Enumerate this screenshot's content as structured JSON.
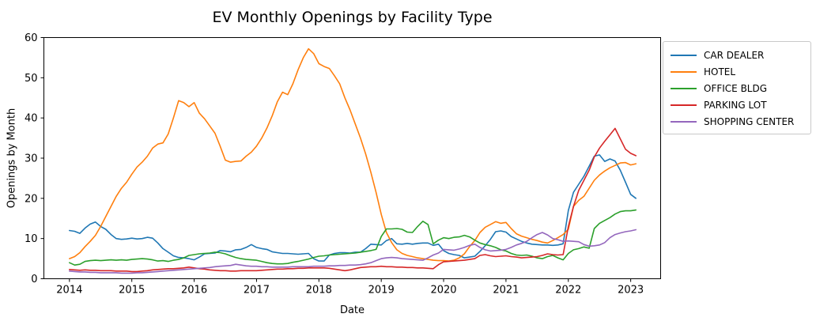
{
  "title": "EV Monthly Openings by Facility Type",
  "chart_data": {
    "type": "line",
    "title": "EV Monthly Openings by Facility Type",
    "xlabel": "Date",
    "ylabel": "Openings by Month",
    "xlim": [
      2013.59,
      2023.48
    ],
    "ylim": [
      0,
      60
    ],
    "xticks": [
      2014,
      2015,
      2016,
      2017,
      2018,
      2019,
      2020,
      2021,
      2022,
      2023
    ],
    "yticks": [
      0,
      10,
      20,
      30,
      40,
      50,
      60
    ],
    "grid": false,
    "legend_position": "outside upper right",
    "x_start": 2014.0,
    "x_step": 0.0833333,
    "series": [
      {
        "name": "CAR DEALER",
        "color": "#1f77b4",
        "values": [
          12.0,
          11.8,
          11.3,
          12.6,
          13.6,
          14.1,
          13.0,
          12.3,
          11.0,
          10.0,
          9.8,
          9.9,
          10.1,
          9.9,
          10.0,
          10.3,
          10.1,
          8.9,
          7.5,
          6.6,
          5.7,
          5.3,
          5.2,
          5.0,
          4.7,
          5.4,
          6.2,
          6.3,
          6.4,
          7.0,
          6.9,
          6.7,
          7.2,
          7.3,
          7.8,
          8.5,
          7.8,
          7.5,
          7.3,
          6.7,
          6.5,
          6.3,
          6.3,
          6.2,
          6.1,
          6.2,
          6.3,
          5.0,
          4.4,
          4.4,
          5.9,
          6.3,
          6.5,
          6.5,
          6.4,
          6.6,
          6.6,
          7.5,
          8.6,
          8.5,
          8.4,
          9.5,
          10.0,
          8.7,
          8.6,
          8.8,
          8.6,
          8.8,
          8.9,
          8.9,
          8.3,
          8.6,
          7.0,
          6.3,
          6.0,
          5.8,
          5.2,
          5.4,
          5.6,
          6.8,
          8.2,
          9.8,
          11.7,
          11.9,
          11.6,
          10.5,
          9.9,
          9.3,
          8.9,
          8.6,
          8.5,
          8.4,
          8.4,
          8.3,
          8.4,
          8.7,
          17.0,
          21.5,
          23.5,
          25.5,
          28.0,
          30.5,
          30.8,
          29.2,
          29.8,
          29.3,
          27.0,
          24.0,
          21.0,
          20.0
        ]
      },
      {
        "name": "HOTEL",
        "color": "#ff7f0e",
        "values": [
          5.0,
          5.5,
          6.5,
          8.0,
          9.3,
          10.8,
          13.0,
          15.5,
          18.0,
          20.5,
          22.5,
          24.0,
          26.0,
          27.8,
          29.0,
          30.5,
          32.5,
          33.5,
          33.8,
          36.0,
          40.0,
          44.3,
          43.8,
          42.8,
          43.8,
          41.2,
          39.8,
          38.0,
          36.2,
          33.0,
          29.5,
          29.0,
          29.2,
          29.3,
          30.5,
          31.5,
          33.0,
          35.0,
          37.5,
          40.5,
          44.0,
          46.4,
          45.8,
          48.5,
          52.0,
          55.0,
          57.2,
          56.0,
          53.5,
          52.8,
          52.3,
          50.5,
          48.5,
          45.0,
          42.0,
          38.5,
          35.0,
          31.0,
          26.5,
          21.5,
          16.0,
          11.5,
          9.0,
          7.2,
          6.3,
          5.8,
          5.5,
          5.2,
          5.0,
          4.8,
          4.6,
          4.5,
          4.5,
          4.4,
          4.6,
          5.2,
          6.2,
          8.0,
          9.5,
          11.5,
          12.8,
          13.5,
          14.2,
          13.8,
          14.0,
          12.5,
          11.2,
          10.6,
          10.2,
          9.8,
          9.5,
          9.1,
          8.9,
          9.5,
          10.2,
          11.0,
          12.3,
          18.0,
          19.5,
          20.5,
          22.5,
          24.5,
          25.8,
          26.8,
          27.6,
          28.2,
          28.8,
          28.9,
          28.3,
          28.6
        ]
      },
      {
        "name": "OFFICE BLDG",
        "color": "#2ca02c",
        "values": [
          4.0,
          3.4,
          3.6,
          4.3,
          4.5,
          4.6,
          4.5,
          4.6,
          4.7,
          4.6,
          4.7,
          4.6,
          4.8,
          4.9,
          5.0,
          4.9,
          4.7,
          4.4,
          4.5,
          4.3,
          4.6,
          4.8,
          5.2,
          5.8,
          6.0,
          6.2,
          6.3,
          6.4,
          6.6,
          6.5,
          6.2,
          5.7,
          5.3,
          5.0,
          4.8,
          4.7,
          4.6,
          4.3,
          4.0,
          3.8,
          3.7,
          3.7,
          3.8,
          4.1,
          4.3,
          4.6,
          4.9,
          5.3,
          5.6,
          5.7,
          5.9,
          6.0,
          6.1,
          6.2,
          6.3,
          6.4,
          6.6,
          6.8,
          7.0,
          7.3,
          10.5,
          12.4,
          12.4,
          12.5,
          12.3,
          11.6,
          11.5,
          13.0,
          14.3,
          13.5,
          8.7,
          9.6,
          10.2,
          10.0,
          10.3,
          10.4,
          10.8,
          10.4,
          9.6,
          8.9,
          8.5,
          8.2,
          7.8,
          7.2,
          6.9,
          6.3,
          5.9,
          5.8,
          5.9,
          5.6,
          5.2,
          5.0,
          5.5,
          5.8,
          5.2,
          4.7,
          6.3,
          7.2,
          7.5,
          7.9,
          7.6,
          12.5,
          13.8,
          14.5,
          15.2,
          16.1,
          16.7,
          16.9,
          16.9,
          17.1
        ]
      },
      {
        "name": "PARKING LOT",
        "color": "#d62728",
        "values": [
          2.3,
          2.2,
          2.1,
          2.2,
          2.1,
          2.1,
          2.0,
          2.0,
          2.0,
          1.9,
          1.9,
          1.9,
          1.8,
          1.8,
          1.9,
          2.0,
          2.2,
          2.3,
          2.4,
          2.5,
          2.5,
          2.6,
          2.7,
          2.9,
          2.7,
          2.5,
          2.4,
          2.2,
          2.1,
          2.0,
          2.0,
          1.9,
          1.9,
          2.0,
          2.0,
          2.0,
          2.0,
          2.1,
          2.2,
          2.3,
          2.4,
          2.4,
          2.5,
          2.5,
          2.6,
          2.6,
          2.7,
          2.7,
          2.7,
          2.7,
          2.6,
          2.4,
          2.2,
          2.0,
          2.2,
          2.5,
          2.8,
          2.9,
          3.0,
          3.0,
          3.1,
          3.0,
          3.0,
          2.9,
          2.9,
          2.8,
          2.8,
          2.7,
          2.7,
          2.6,
          2.5,
          3.5,
          4.2,
          4.3,
          4.4,
          4.5,
          4.6,
          4.8,
          5.0,
          5.8,
          6.0,
          5.7,
          5.5,
          5.6,
          5.7,
          5.5,
          5.4,
          5.2,
          5.3,
          5.4,
          5.5,
          5.8,
          6.2,
          6.0,
          5.9,
          6.0,
          13.0,
          18.0,
          22.0,
          24.5,
          27.0,
          30.3,
          32.5,
          34.2,
          35.8,
          37.4,
          34.8,
          32.2,
          31.2,
          30.6
        ]
      },
      {
        "name": "SHOPPING CENTER",
        "color": "#9467bd",
        "values": [
          1.9,
          1.8,
          1.7,
          1.7,
          1.6,
          1.6,
          1.5,
          1.5,
          1.5,
          1.5,
          1.4,
          1.4,
          1.4,
          1.5,
          1.5,
          1.6,
          1.7,
          1.8,
          1.9,
          2.0,
          2.1,
          2.2,
          2.3,
          2.4,
          2.5,
          2.6,
          2.7,
          2.8,
          3.0,
          3.1,
          3.2,
          3.3,
          3.6,
          3.4,
          3.2,
          3.1,
          3.1,
          3.0,
          3.0,
          2.9,
          2.9,
          2.9,
          2.9,
          3.0,
          3.0,
          3.0,
          3.0,
          3.1,
          3.1,
          3.1,
          3.2,
          3.2,
          3.3,
          3.3,
          3.4,
          3.4,
          3.5,
          3.7,
          4.0,
          4.5,
          5.0,
          5.2,
          5.3,
          5.2,
          5.0,
          4.9,
          4.8,
          4.7,
          4.6,
          5.2,
          5.9,
          6.4,
          7.3,
          7.2,
          7.1,
          7.4,
          7.8,
          8.3,
          8.6,
          7.8,
          7.2,
          6.9,
          7.0,
          7.1,
          7.3,
          7.8,
          8.4,
          8.8,
          9.3,
          10.2,
          11.0,
          11.5,
          10.9,
          10.0,
          9.7,
          9.3,
          9.4,
          9.3,
          9.2,
          8.5,
          8.1,
          8.2,
          8.4,
          9.0,
          10.2,
          11.0,
          11.4,
          11.7,
          11.9,
          12.2
        ]
      }
    ]
  }
}
